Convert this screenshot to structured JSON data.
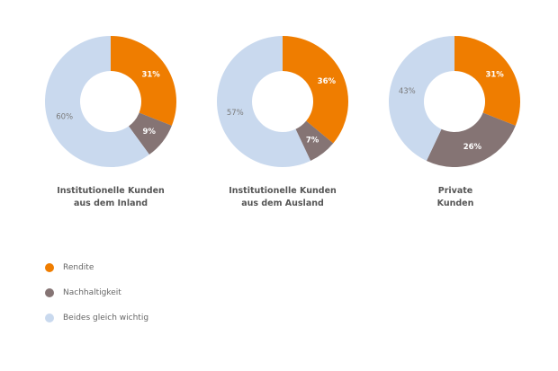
{
  "colors": {
    "rendite": "#ef7d00",
    "nachhaltigkeit": "#857474",
    "beides": "#c9d9ee"
  },
  "chart_data": [
    {
      "type": "pie",
      "title_line1": "Institutionelle Kunden",
      "title_line2": "aus dem Inland",
      "slices": [
        {
          "name": "Rendite",
          "value": 31,
          "label": "31%"
        },
        {
          "name": "Nachhaltigkeit",
          "value": 9,
          "label": "9%"
        },
        {
          "name": "Beides gleich wichtig",
          "value": 60,
          "label": "60%"
        }
      ]
    },
    {
      "type": "pie",
      "title_line1": "Institutionelle Kunden",
      "title_line2": "aus dem Ausland",
      "slices": [
        {
          "name": "Rendite",
          "value": 36,
          "label": "36%"
        },
        {
          "name": "Nachhaltigkeit",
          "value": 7,
          "label": "7%"
        },
        {
          "name": "Beides gleich wichtig",
          "value": 57,
          "label": "57%"
        }
      ]
    },
    {
      "type": "pie",
      "title_line1": "Private",
      "title_line2": "Kunden",
      "slices": [
        {
          "name": "Rendite",
          "value": 31,
          "label": "31%"
        },
        {
          "name": "Nachhaltigkeit",
          "value": 26,
          "label": "26%"
        },
        {
          "name": "Beides gleich wichtig",
          "value": 43,
          "label": "43%"
        }
      ]
    }
  ],
  "legend": [
    {
      "label": "Rendite",
      "color": "#ef7d00"
    },
    {
      "label": "Nachhaltigkeit",
      "color": "#857474"
    },
    {
      "label": "Beides gleich wichtig",
      "color": "#c9d9ee"
    }
  ]
}
